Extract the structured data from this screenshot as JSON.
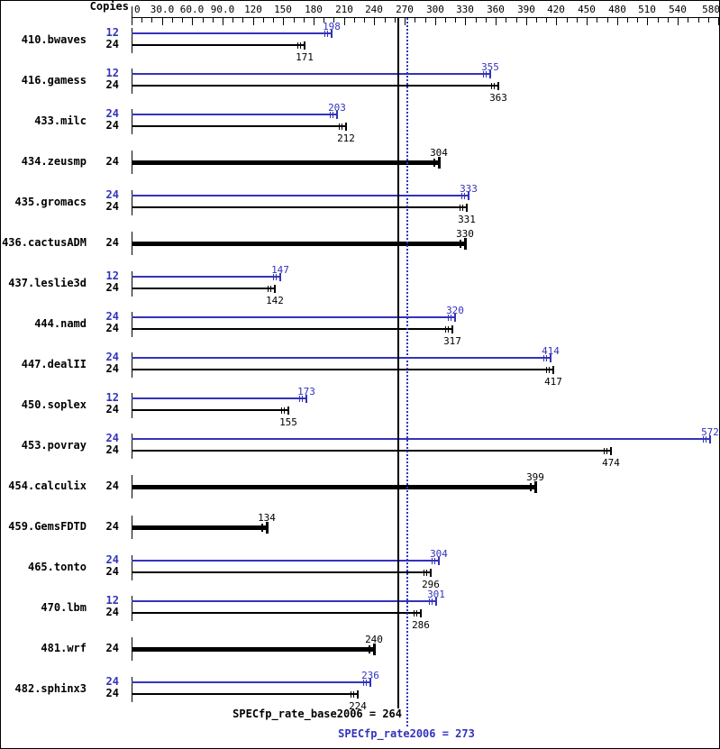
{
  "header": {
    "copies_label": "Copies"
  },
  "colors": {
    "peak": "#3333bb",
    "base": "#000000",
    "background": "#ffffff",
    "border": "#000000"
  },
  "chart_data": {
    "type": "bar",
    "orientation": "horizontal",
    "title": "",
    "xlabel": "",
    "ylabel": "Copies",
    "axis": {
      "min": 0,
      "max": 580,
      "minor_tick_step": 10,
      "major_ticks": [
        {
          "value": 0,
          "label": "0"
        },
        {
          "value": 30,
          "label": "30.0"
        },
        {
          "value": 60,
          "label": "60.0"
        },
        {
          "value": 90,
          "label": "90.0"
        },
        {
          "value": 120,
          "label": "120"
        },
        {
          "value": 150,
          "label": "150"
        },
        {
          "value": 180,
          "label": "180"
        },
        {
          "value": 210,
          "label": "210"
        },
        {
          "value": 240,
          "label": "240"
        },
        {
          "value": 270,
          "label": "270"
        },
        {
          "value": 300,
          "label": "300"
        },
        {
          "value": 330,
          "label": "330"
        },
        {
          "value": 360,
          "label": "360"
        },
        {
          "value": 390,
          "label": "390"
        },
        {
          "value": 420,
          "label": "420"
        },
        {
          "value": 450,
          "label": "450"
        },
        {
          "value": 480,
          "label": "480"
        },
        {
          "value": 510,
          "label": "510"
        },
        {
          "value": 540,
          "label": "540"
        },
        {
          "value": 580,
          "label": "580"
        }
      ]
    },
    "benchmarks": [
      {
        "name": "410.bwaves",
        "bars": [
          {
            "copies": "12",
            "value": 198,
            "series": "peak"
          },
          {
            "copies": "24",
            "value": 171,
            "series": "base"
          }
        ]
      },
      {
        "name": "416.gamess",
        "bars": [
          {
            "copies": "12",
            "value": 355,
            "series": "peak"
          },
          {
            "copies": "24",
            "value": 363,
            "series": "base"
          }
        ]
      },
      {
        "name": "433.milc",
        "bars": [
          {
            "copies": "24",
            "value": 203,
            "series": "peak"
          },
          {
            "copies": "24",
            "value": 212,
            "series": "base"
          }
        ]
      },
      {
        "name": "434.zeusmp",
        "bars": [
          {
            "copies": "24",
            "value": 304,
            "series": "base"
          }
        ]
      },
      {
        "name": "435.gromacs",
        "bars": [
          {
            "copies": "24",
            "value": 333,
            "series": "peak"
          },
          {
            "copies": "24",
            "value": 331,
            "series": "base"
          }
        ]
      },
      {
        "name": "436.cactusADM",
        "bars": [
          {
            "copies": "24",
            "value": 330,
            "series": "base"
          }
        ]
      },
      {
        "name": "437.leslie3d",
        "bars": [
          {
            "copies": "12",
            "value": 147,
            "series": "peak"
          },
          {
            "copies": "24",
            "value": 142,
            "series": "base"
          }
        ]
      },
      {
        "name": "444.namd",
        "bars": [
          {
            "copies": "24",
            "value": 320,
            "series": "peak"
          },
          {
            "copies": "24",
            "value": 317,
            "series": "base"
          }
        ]
      },
      {
        "name": "447.dealII",
        "bars": [
          {
            "copies": "24",
            "value": 414,
            "series": "peak"
          },
          {
            "copies": "24",
            "value": 417,
            "series": "base"
          }
        ]
      },
      {
        "name": "450.soplex",
        "bars": [
          {
            "copies": "12",
            "value": 173,
            "series": "peak"
          },
          {
            "copies": "24",
            "value": 155,
            "series": "base"
          }
        ]
      },
      {
        "name": "453.povray",
        "bars": [
          {
            "copies": "24",
            "value": 572,
            "series": "peak"
          },
          {
            "copies": "24",
            "value": 474,
            "series": "base"
          }
        ]
      },
      {
        "name": "454.calculix",
        "bars": [
          {
            "copies": "24",
            "value": 399,
            "series": "base"
          }
        ]
      },
      {
        "name": "459.GemsFDTD",
        "bars": [
          {
            "copies": "24",
            "value": 134,
            "series": "base"
          }
        ]
      },
      {
        "name": "465.tonto",
        "bars": [
          {
            "copies": "24",
            "value": 304,
            "series": "peak"
          },
          {
            "copies": "24",
            "value": 296,
            "series": "base"
          }
        ]
      },
      {
        "name": "470.lbm",
        "bars": [
          {
            "copies": "12",
            "value": 301,
            "series": "peak"
          },
          {
            "copies": "24",
            "value": 286,
            "series": "base"
          }
        ]
      },
      {
        "name": "481.wrf",
        "bars": [
          {
            "copies": "24",
            "value": 240,
            "series": "base"
          }
        ]
      },
      {
        "name": "482.sphinx3",
        "bars": [
          {
            "copies": "24",
            "value": 236,
            "series": "peak"
          },
          {
            "copies": "24",
            "value": 224,
            "series": "base"
          }
        ]
      }
    ],
    "reference_lines": [
      {
        "value": 264,
        "style": "solid",
        "color": "#000000",
        "label": "SPECfp_rate_base2006 = 264"
      },
      {
        "value": 273,
        "style": "dotted",
        "color": "#3333bb",
        "label": "SPECfp_rate2006 = 273"
      }
    ]
  }
}
